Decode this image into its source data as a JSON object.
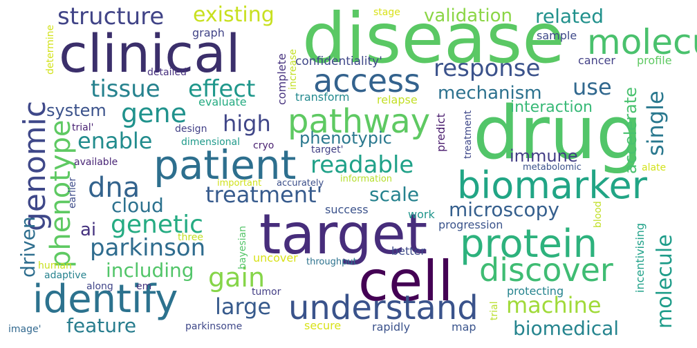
{
  "words": [
    {
      "text": "disease",
      "color": "#5ac864"
    },
    {
      "text": "clinical",
      "color": "#3b2f6b"
    },
    {
      "text": "drug",
      "color": "#52c569"
    },
    {
      "text": "target",
      "color": "#472d7b"
    },
    {
      "text": "cell",
      "color": "#440154"
    },
    {
      "text": "patient",
      "color": "#2d6f8e"
    },
    {
      "text": "protein",
      "color": "#2db27d"
    },
    {
      "text": "biomarker",
      "color": "#21a585"
    },
    {
      "text": "identify",
      "color": "#2c728e"
    },
    {
      "text": "understand",
      "color": "#3a538b"
    },
    {
      "text": "discover",
      "color": "#3fbc73"
    },
    {
      "text": "pathway",
      "color": "#5ec962"
    },
    {
      "text": "access",
      "color": "#33628d"
    },
    {
      "text": "molecular",
      "color": "#3f4889"
    },
    {
      "text": "genomic",
      "color": "#5ec962"
    },
    {
      "text": "phenotype",
      "color": "#86d549"
    },
    {
      "text": "gain",
      "color": "#4ac16d"
    },
    {
      "text": "gene",
      "color": "#20928c"
    },
    {
      "text": "effect",
      "color": "#1f978b"
    },
    {
      "text": "tissue",
      "color": "#26828e"
    },
    {
      "text": "response",
      "color": "#3b528b"
    },
    {
      "text": "readable",
      "color": "#1fa188"
    },
    {
      "text": "treatment'",
      "color": "#375b8d"
    },
    {
      "text": "dna",
      "color": "#33638d"
    },
    {
      "text": "genetic",
      "color": "#25ab82"
    },
    {
      "text": "parkinson",
      "color": "#2f6c8e"
    },
    {
      "text": "machine",
      "color": "#a0da39"
    },
    {
      "text": "microscopy",
      "color": "#355f8d"
    },
    {
      "text": "molecule",
      "color": "#1e9c89"
    },
    {
      "text": "structure",
      "color": "#414487"
    },
    {
      "text": "existing",
      "color": "#c8e020"
    },
    {
      "text": "large",
      "color": "#375a8c"
    },
    {
      "text": "high",
      "color": "#404688"
    },
    {
      "text": "enable",
      "color": "#228c8d"
    },
    {
      "text": "use",
      "color": "#31688e"
    },
    {
      "text": "single",
      "color": "#2a788e"
    },
    {
      "text": "mechanism",
      "color": "#2c718e"
    },
    {
      "text": "scale",
      "color": "#26828e"
    },
    {
      "text": "cloud",
      "color": "#2c718e"
    },
    {
      "text": "related",
      "color": "#21918c"
    },
    {
      "text": "validation",
      "color": "#8bd646"
    },
    {
      "text": "biomedical",
      "color": "#25848e"
    },
    {
      "text": "including",
      "color": "#52c569"
    },
    {
      "text": "feature",
      "color": "#287d8e"
    },
    {
      "text": "accelerate",
      "color": "#48c16e"
    },
    {
      "text": "immune",
      "color": "#433e85"
    },
    {
      "text": "phenotypic",
      "color": "#2a788e"
    },
    {
      "text": "interaction",
      "color": "#38b977"
    },
    {
      "text": "driven",
      "color": "#2e6e8e"
    },
    {
      "text": "ai",
      "color": "#46337f"
    },
    {
      "text": "system",
      "color": "#3b528b"
    },
    {
      "text": "confidentiality'",
      "color": "#3f4788"
    },
    {
      "text": "graph",
      "color": "#414487"
    },
    {
      "text": "sample",
      "color": "#3e4989"
    },
    {
      "text": "cancer",
      "color": "#424086"
    },
    {
      "text": "profile",
      "color": "#5ec962"
    },
    {
      "text": "stage",
      "color": "#d8e219"
    },
    {
      "text": "determine",
      "color": "#d2e21b"
    },
    {
      "text": "detailed",
      "color": "#46307e"
    },
    {
      "text": "increase",
      "color": "#c2df23"
    },
    {
      "text": "complete",
      "color": "#46327e"
    },
    {
      "text": "transform",
      "color": "#23898e"
    },
    {
      "text": "evaluate",
      "color": "#25ab82"
    },
    {
      "text": "relapse",
      "color": "#c2df23"
    },
    {
      "text": "predict",
      "color": "#481a6c"
    },
    {
      "text": "treatment",
      "color": "#3f4889"
    },
    {
      "text": "trial'",
      "color": "#482173"
    },
    {
      "text": "design",
      "color": "#424086"
    },
    {
      "text": "dimensional",
      "color": "#1f9a8a"
    },
    {
      "text": "cryo",
      "color": "#481f70"
    },
    {
      "text": "target'",
      "color": "#424086"
    },
    {
      "text": "metabolomic",
      "color": "#3b528b"
    },
    {
      "text": "alate",
      "color": "#d2e21b"
    },
    {
      "text": "available",
      "color": "#482475"
    },
    {
      "text": "earlier",
      "color": "#3e4c8a"
    },
    {
      "text": "important",
      "color": "#d0e11c"
    },
    {
      "text": "accurately",
      "color": "#3c4f8a"
    },
    {
      "text": "information",
      "color": "#b5de2b"
    },
    {
      "text": "success",
      "color": "#3b528b"
    },
    {
      "text": "work",
      "color": "#1f958b"
    },
    {
      "text": "progression",
      "color": "#3a538b"
    },
    {
      "text": "three",
      "color": "#c2df23"
    },
    {
      "text": "bayesian",
      "color": "#54c568"
    },
    {
      "text": "uncover",
      "color": "#d8e219"
    },
    {
      "text": "better",
      "color": "#3e4a89"
    },
    {
      "text": "blood",
      "color": "#c0df25"
    },
    {
      "text": "incentivising",
      "color": "#1fa188"
    },
    {
      "text": "human",
      "color": "#c8e020"
    },
    {
      "text": "adaptive",
      "color": "#26828e"
    },
    {
      "text": "throughput",
      "color": "#2c728e"
    },
    {
      "text": "along",
      "color": "#404588"
    },
    {
      "text": "em",
      "color": "#46337f"
    },
    {
      "text": "tumor",
      "color": "#433e85"
    },
    {
      "text": "protecting",
      "color": "#25838e"
    },
    {
      "text": "trial",
      "color": "#b8de29"
    },
    {
      "text": "image'",
      "color": "#31688e"
    },
    {
      "text": "parkinsome",
      "color": "#3f4889"
    },
    {
      "text": "secure",
      "color": "#d8e219"
    },
    {
      "text": "rapidly",
      "color": "#3b528b"
    },
    {
      "text": "map",
      "color": "#3a548c"
    }
  ]
}
